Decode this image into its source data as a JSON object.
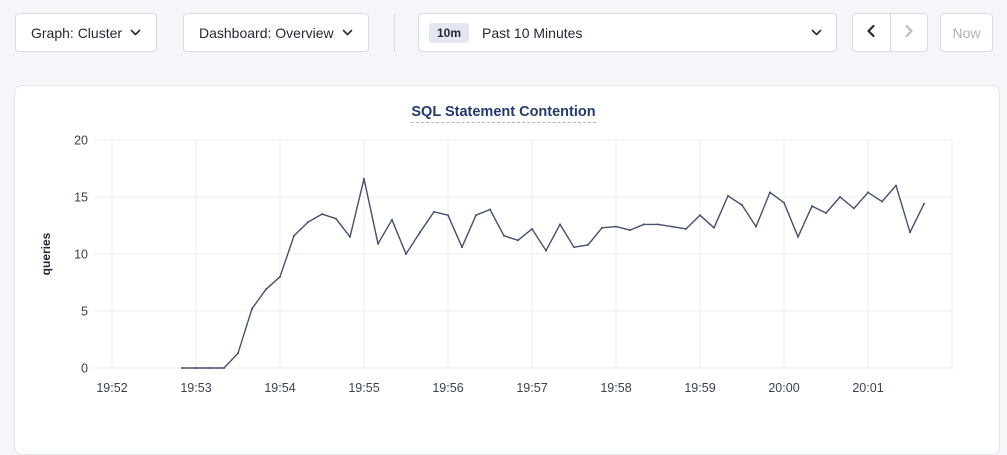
{
  "toolbar": {
    "graph_dropdown": {
      "label": "Graph: Cluster"
    },
    "dashboard_dropdown": {
      "label": "Dashboard: Overview"
    },
    "time_range": {
      "badge": "10m",
      "label": "Past 10 Minutes"
    },
    "now_button": {
      "label": "Now",
      "disabled": true
    },
    "prev_enabled": true,
    "next_enabled": false
  },
  "icons": {
    "dropdown_chevron": "chevron-down",
    "prev": "chevron-left",
    "next": "chevron-right"
  },
  "chart": {
    "title": "SQL Statement Contention",
    "ylabel": "queries"
  },
  "colors": {
    "page_bg": "#f4f6fa",
    "card_bg": "#ffffff",
    "control_border": "#d6dbe4",
    "text_dark": "#242a35",
    "disabled_text": "#aab2bf",
    "title_text": "#233a6c",
    "badge_bg": "#e2e7f1",
    "line": "#46506e",
    "grid": "#ececee",
    "tick_text": "#3a4250"
  },
  "chart_data": {
    "type": "line",
    "title": "SQL Statement Contention",
    "xlabel": "",
    "ylabel": "queries",
    "ylim": [
      0,
      20
    ],
    "yticks": [
      0,
      5,
      10,
      15,
      20
    ],
    "xticks": [
      "19:52",
      "19:53",
      "19:54",
      "19:55",
      "19:56",
      "19:57",
      "19:58",
      "19:59",
      "20:00",
      "20:01"
    ],
    "grid": true,
    "legend": "none",
    "line_color": "#46506e",
    "series": [
      {
        "name": "queries",
        "x": [
          "19:52:50",
          "19:53:00",
          "19:53:10",
          "19:53:20",
          "19:53:30",
          "19:53:40",
          "19:53:50",
          "19:54:00",
          "19:54:10",
          "19:54:20",
          "19:54:30",
          "19:54:40",
          "19:54:50",
          "19:55:00",
          "19:55:10",
          "19:55:20",
          "19:55:30",
          "19:55:40",
          "19:55:50",
          "19:56:00",
          "19:56:10",
          "19:56:20",
          "19:56:30",
          "19:56:40",
          "19:56:50",
          "19:57:00",
          "19:57:10",
          "19:57:20",
          "19:57:30",
          "19:57:40",
          "19:57:50",
          "19:58:00",
          "19:58:10",
          "19:58:20",
          "19:58:30",
          "19:58:40",
          "19:58:50",
          "19:59:00",
          "19:59:10",
          "19:59:20",
          "19:59:30",
          "19:59:40",
          "19:59:50",
          "20:00:00",
          "20:00:10",
          "20:00:20",
          "20:00:30",
          "20:00:40",
          "20:00:50",
          "20:01:00",
          "20:01:10",
          "20:01:20",
          "20:01:30",
          "20:01:40"
        ],
        "y": [
          0,
          0,
          0,
          0,
          1.3,
          5.2,
          6.9,
          8.0,
          11.6,
          12.8,
          13.5,
          13.1,
          11.5,
          16.6,
          10.9,
          13.0,
          10.0,
          11.9,
          13.7,
          13.4,
          10.6,
          13.4,
          13.9,
          11.6,
          11.2,
          12.2,
          10.3,
          12.6,
          10.6,
          10.8,
          12.3,
          12.4,
          12.1,
          12.6,
          12.6,
          12.4,
          12.2,
          13.4,
          12.3,
          15.1,
          14.3,
          12.4,
          15.4,
          14.5,
          11.5,
          14.2,
          13.6,
          15.0,
          14.0,
          15.4,
          14.6,
          16.0,
          11.9,
          14.4
        ]
      }
    ]
  }
}
